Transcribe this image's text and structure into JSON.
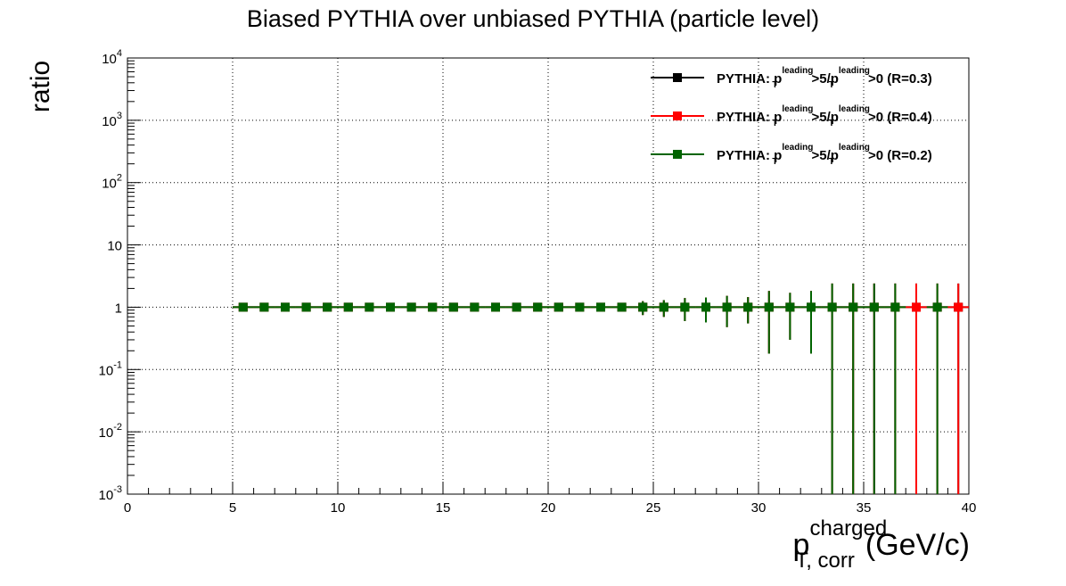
{
  "chart_data": {
    "type": "scatter",
    "title": "Biased PYTHIA over unbiased PYTHIA (particle level)",
    "ylabel": "ratio",
    "xlabel": {
      "base": "p",
      "superscript": "charged",
      "subscript": "T, corr",
      "unit": "(GeV/c)"
    },
    "xlim": [
      0,
      40
    ],
    "ylim": [
      0.001,
      10000
    ],
    "y_scale": "log",
    "grid": true,
    "grid_style": "dotted",
    "legend_placement": "top-right",
    "x_ticks": [
      0,
      5,
      10,
      15,
      20,
      25,
      30,
      35,
      40
    ],
    "x_tick_labels": [
      "0",
      "5",
      "10",
      "15",
      "20",
      "25",
      "30",
      "35",
      "40"
    ],
    "y_ticks": [
      {
        "value": 0.001,
        "base": "10",
        "exp": "-3"
      },
      {
        "value": 0.01,
        "base": "10",
        "exp": "-2"
      },
      {
        "value": 0.1,
        "base": "10",
        "exp": "-1"
      },
      {
        "value": 1,
        "base": "1",
        "exp": ""
      },
      {
        "value": 10,
        "base": "10",
        "exp": ""
      },
      {
        "value": 100,
        "base": "10",
        "exp": "2"
      },
      {
        "value": 1000,
        "base": "10",
        "exp": "3"
      },
      {
        "value": 10000,
        "base": "10",
        "exp": "4"
      }
    ],
    "series": [
      {
        "name": {
          "prefix": "PYTHIA: p",
          "sub1": "T",
          "sup1": "leading",
          "mid": ">5/p",
          "sub2": "T",
          "sup2": "leading",
          "suffix": ">0 (R=0.3)"
        },
        "color": "#000000",
        "x": [
          5.5,
          6.5,
          7.5,
          8.5,
          9.5,
          10.5,
          11.5,
          12.5,
          13.5,
          14.5,
          15.5,
          16.5,
          17.5,
          18.5,
          19.5,
          20.5,
          21.5,
          22.5,
          23.5,
          24.5,
          25.5,
          26.5,
          27.5,
          28.5,
          29.5,
          30.5,
          31.5,
          32.5,
          33.5,
          34.5,
          35.5,
          36.5,
          37.5,
          38.5,
          39.5
        ],
        "y": [
          1,
          1,
          1,
          1,
          1,
          1,
          1,
          1,
          1,
          1,
          1,
          1,
          1,
          1,
          1,
          1,
          1,
          1,
          1,
          1,
          1,
          1,
          1,
          1,
          1,
          1,
          1,
          1,
          1,
          1,
          1,
          1,
          1,
          1,
          1
        ],
        "y_low": [
          1,
          1,
          1,
          1,
          1,
          1,
          1,
          1,
          1,
          1,
          1,
          1,
          1,
          1,
          1,
          1,
          1,
          1,
          1,
          0.75,
          0.7,
          0.6,
          0.57,
          0.48,
          0.55,
          0.18,
          0.3,
          0.18,
          0.001,
          0.001,
          0.001,
          0.001,
          0.001,
          0.001,
          0.001
        ],
        "y_high": [
          1,
          1,
          1,
          1,
          1,
          1,
          1,
          1,
          1,
          1,
          1,
          1,
          1,
          1,
          1,
          1,
          1,
          1,
          1,
          1.25,
          1.3,
          1.4,
          1.43,
          1.52,
          1.45,
          1.82,
          1.7,
          1.82,
          2.4,
          2.4,
          2.4,
          2.4,
          2.4,
          2.4,
          2.4
        ]
      },
      {
        "name": {
          "prefix": "PYTHIA: p",
          "sub1": "T",
          "sup1": "leading",
          "mid": ">5/p",
          "sub2": "T",
          "sup2": "leading",
          "suffix": ">0 (R=0.4)"
        },
        "color": "#ff0000",
        "x": [
          5.5,
          6.5,
          7.5,
          8.5,
          9.5,
          10.5,
          11.5,
          12.5,
          13.5,
          14.5,
          15.5,
          16.5,
          17.5,
          18.5,
          19.5,
          20.5,
          21.5,
          22.5,
          23.5,
          24.5,
          25.5,
          26.5,
          27.5,
          28.5,
          29.5,
          30.5,
          31.5,
          32.5,
          33.5,
          34.5,
          35.5,
          36.5,
          37.5,
          38.5,
          39.5
        ],
        "y": [
          1,
          1,
          1,
          1,
          1,
          1,
          1,
          1,
          1,
          1,
          1,
          1,
          1,
          1,
          1,
          1,
          1,
          1,
          1,
          1,
          1,
          1,
          1,
          1,
          1,
          1,
          1,
          1,
          1,
          1,
          1,
          1,
          1,
          1,
          1
        ],
        "y_low": [
          1,
          1,
          1,
          1,
          1,
          1,
          1,
          1,
          1,
          1,
          1,
          1,
          1,
          1,
          1,
          1,
          1,
          1,
          1,
          0.75,
          0.7,
          0.6,
          0.57,
          0.48,
          0.55,
          0.18,
          0.3,
          0.18,
          0.001,
          0.001,
          0.001,
          0.001,
          0.001,
          0.001,
          0.001
        ],
        "y_high": [
          1,
          1,
          1,
          1,
          1,
          1,
          1,
          1,
          1,
          1,
          1,
          1,
          1,
          1,
          1,
          1,
          1,
          1,
          1,
          1.25,
          1.3,
          1.4,
          1.43,
          1.52,
          1.45,
          1.82,
          1.7,
          1.82,
          2.4,
          2.4,
          2.4,
          2.4,
          2.4,
          2.4,
          2.4
        ]
      },
      {
        "name": {
          "prefix": "PYTHIA: p",
          "sub1": "T",
          "sup1": "leading",
          "mid": ">5/p",
          "sub2": "T",
          "sup2": "leading",
          "suffix": ">0 (R=0.2)"
        },
        "color": "#006400",
        "x": [
          5.5,
          6.5,
          7.5,
          8.5,
          9.5,
          10.5,
          11.5,
          12.5,
          13.5,
          14.5,
          15.5,
          16.5,
          17.5,
          18.5,
          19.5,
          20.5,
          21.5,
          22.5,
          23.5,
          24.5,
          25.5,
          26.5,
          27.5,
          28.5,
          29.5,
          30.5,
          31.5,
          32.5,
          33.5,
          34.5,
          35.5,
          36.5,
          38.5
        ],
        "y": [
          1,
          1,
          1,
          1,
          1,
          1,
          1,
          1,
          1,
          1,
          1,
          1,
          1,
          1,
          1,
          1,
          1,
          1,
          1,
          1,
          1,
          1,
          1,
          1,
          1,
          1,
          1,
          1,
          1,
          1,
          1,
          1,
          1
        ],
        "y_low": [
          1,
          1,
          1,
          1,
          1,
          1,
          1,
          1,
          1,
          1,
          1,
          1,
          1,
          1,
          1,
          1,
          1,
          1,
          1,
          0.75,
          0.7,
          0.6,
          0.57,
          0.48,
          0.55,
          0.18,
          0.3,
          0.18,
          0.001,
          0.001,
          0.001,
          0.001,
          0.001
        ],
        "y_high": [
          1,
          1,
          1,
          1,
          1,
          1,
          1,
          1,
          1,
          1,
          1,
          1,
          1,
          1,
          1,
          1,
          1,
          1,
          1,
          1.25,
          1.3,
          1.4,
          1.43,
          1.52,
          1.45,
          1.82,
          1.7,
          1.82,
          2.4,
          2.4,
          2.4,
          2.4,
          2.4
        ]
      }
    ]
  }
}
